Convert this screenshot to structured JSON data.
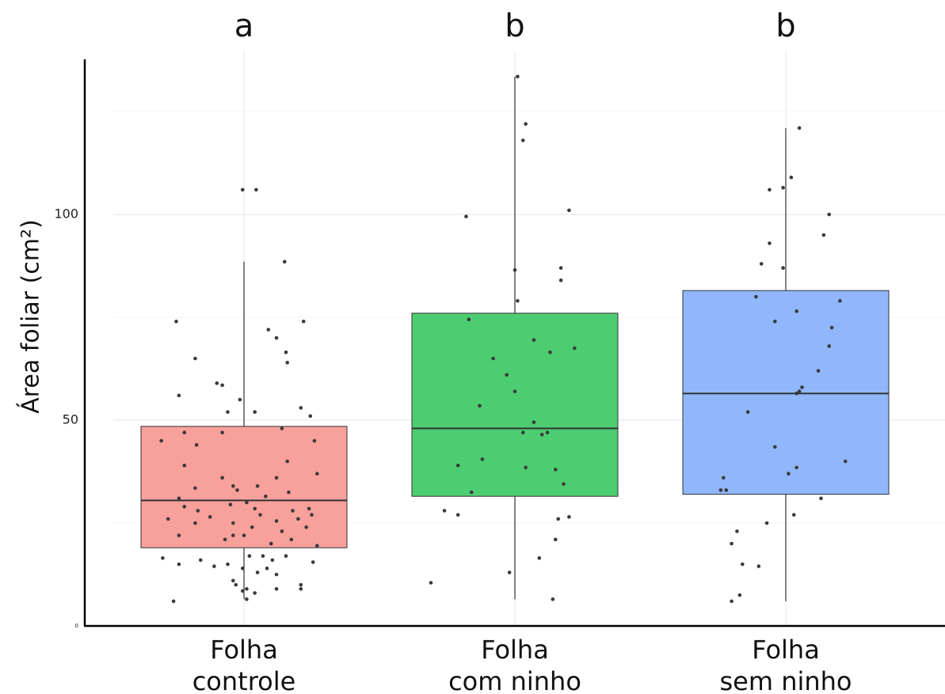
{
  "chart_data": {
    "type": "box",
    "ylabel": "Área foliar (cm²)",
    "ylim": [
      0,
      137
    ],
    "yticks": [
      {
        "value": 0,
        "label": "0"
      },
      {
        "value": 50,
        "label": "50"
      },
      {
        "value": 100,
        "label": "100"
      }
    ],
    "grid": true,
    "categories": [
      {
        "label_lines": [
          "Folha",
          "controle"
        ],
        "group_letter": "a",
        "color": "#f8a09c",
        "min": 6.5,
        "q1": 19,
        "median": 30.5,
        "q3": 48.5,
        "max": 88.5,
        "points": [
          [
            0.995,
            106
          ],
          [
            1.045,
            106
          ],
          [
            0.75,
            74
          ],
          [
            0.82,
            65
          ],
          [
            0.76,
            56
          ],
          [
            0.9,
            59
          ],
          [
            0.92,
            58.5
          ],
          [
            0.985,
            55
          ],
          [
            0.94,
            52
          ],
          [
            1.04,
            52
          ],
          [
            1.15,
            88.5
          ],
          [
            1.09,
            72
          ],
          [
            1.12,
            70
          ],
          [
            1.155,
            66.5
          ],
          [
            1.16,
            64
          ],
          [
            1.22,
            74
          ],
          [
            1.21,
            53
          ],
          [
            1.245,
            51
          ],
          [
            1.14,
            48
          ],
          [
            0.695,
            45
          ],
          [
            0.78,
            47
          ],
          [
            0.825,
            44
          ],
          [
            0.92,
            47
          ],
          [
            1.26,
            45
          ],
          [
            1.16,
            40
          ],
          [
            1.27,
            37
          ],
          [
            0.78,
            39
          ],
          [
            0.82,
            33.5
          ],
          [
            0.92,
            36
          ],
          [
            0.96,
            34
          ],
          [
            0.975,
            33
          ],
          [
            1.05,
            34
          ],
          [
            1.08,
            31.5
          ],
          [
            1.12,
            36
          ],
          [
            1.165,
            32.5
          ],
          [
            0.76,
            31
          ],
          [
            0.78,
            29
          ],
          [
            0.83,
            28
          ],
          [
            0.875,
            26.5
          ],
          [
            0.95,
            29.5
          ],
          [
            1.01,
            30
          ],
          [
            1.04,
            28.5
          ],
          [
            1.06,
            27
          ],
          [
            1.12,
            25.5
          ],
          [
            1.18,
            28
          ],
          [
            1.2,
            26
          ],
          [
            1.24,
            28.5
          ],
          [
            1.25,
            27
          ],
          [
            0.72,
            26
          ],
          [
            0.76,
            22
          ],
          [
            0.82,
            25
          ],
          [
            0.96,
            25
          ],
          [
            1.0,
            22
          ],
          [
            1.03,
            24
          ],
          [
            1.1,
            20
          ],
          [
            1.14,
            23
          ],
          [
            1.175,
            21
          ],
          [
            1.23,
            24
          ],
          [
            0.93,
            21
          ],
          [
            0.96,
            22
          ],
          [
            1.27,
            19.5
          ],
          [
            1.02,
            17
          ],
          [
            1.07,
            17
          ],
          [
            1.105,
            16
          ],
          [
            1.155,
            17
          ],
          [
            1.255,
            15.5
          ],
          [
            0.7,
            16.5
          ],
          [
            0.76,
            15
          ],
          [
            0.84,
            16
          ],
          [
            0.89,
            14.5
          ],
          [
            0.94,
            15
          ],
          [
            0.995,
            14
          ],
          [
            1.05,
            13
          ],
          [
            1.085,
            14
          ],
          [
            1.12,
            12.5
          ],
          [
            0.96,
            11
          ],
          [
            0.97,
            10
          ],
          [
            1.01,
            9
          ],
          [
            0.995,
            8.5
          ],
          [
            1.04,
            8
          ],
          [
            1.12,
            9
          ],
          [
            1.21,
            10
          ],
          [
            1.21,
            9
          ],
          [
            0.74,
            6
          ],
          [
            1.01,
            6.5
          ]
        ]
      },
      {
        "label_lines": [
          "Folha",
          "com ninho"
        ],
        "group_letter": "b",
        "color": "#4ccd71",
        "min": 6.5,
        "q1": 31.5,
        "median": 48,
        "q3": 76,
        "max": 133.5,
        "points": [
          [
            2.01,
            133.5
          ],
          [
            2.04,
            122
          ],
          [
            2.03,
            118
          ],
          [
            2.2,
            101
          ],
          [
            1.82,
            99.5
          ],
          [
            2.17,
            87
          ],
          [
            2.17,
            84
          ],
          [
            2.0,
            86.5
          ],
          [
            2.01,
            79
          ],
          [
            1.83,
            74.5
          ],
          [
            2.07,
            69.5
          ],
          [
            2.13,
            66.5
          ],
          [
            2.22,
            67.5
          ],
          [
            1.92,
            65
          ],
          [
            1.97,
            61
          ],
          [
            2.0,
            57
          ],
          [
            1.87,
            53.5
          ],
          [
            2.07,
            49.5
          ],
          [
            2.03,
            47
          ],
          [
            2.1,
            46.5
          ],
          [
            2.12,
            47
          ],
          [
            1.79,
            39
          ],
          [
            1.88,
            40.5
          ],
          [
            2.04,
            38.5
          ],
          [
            2.15,
            38
          ],
          [
            2.18,
            34.5
          ],
          [
            1.84,
            32.5
          ],
          [
            1.74,
            28
          ],
          [
            1.79,
            27
          ],
          [
            2.16,
            26
          ],
          [
            2.2,
            26.5
          ],
          [
            2.15,
            21
          ],
          [
            2.09,
            16.5
          ],
          [
            1.69,
            10.5
          ],
          [
            1.98,
            13
          ],
          [
            2.14,
            6.5
          ]
        ]
      },
      {
        "label_lines": [
          "Folha",
          "sem ninho"
        ],
        "group_letter": "b",
        "color": "#90b7fb",
        "min": 6,
        "q1": 32,
        "median": 56.5,
        "q3": 81.5,
        "max": 121,
        "points": [
          [
            3.05,
            121
          ],
          [
            3.02,
            109
          ],
          [
            2.94,
            106
          ],
          [
            2.99,
            106.5
          ],
          [
            3.16,
            100
          ],
          [
            3.14,
            95
          ],
          [
            2.94,
            93
          ],
          [
            2.91,
            88
          ],
          [
            2.99,
            87
          ],
          [
            2.89,
            80
          ],
          [
            2.96,
            74
          ],
          [
            3.04,
            76.5
          ],
          [
            3.2,
            79
          ],
          [
            3.17,
            72.5
          ],
          [
            3.16,
            68
          ],
          [
            3.12,
            62
          ],
          [
            3.06,
            58
          ],
          [
            3.04,
            56.5
          ],
          [
            3.05,
            57
          ],
          [
            2.86,
            52
          ],
          [
            2.96,
            43.5
          ],
          [
            3.04,
            38.5
          ],
          [
            3.01,
            37
          ],
          [
            3.22,
            40
          ],
          [
            2.77,
            36
          ],
          [
            2.76,
            33
          ],
          [
            2.78,
            33
          ],
          [
            3.13,
            31
          ],
          [
            2.82,
            23
          ],
          [
            2.8,
            20
          ],
          [
            2.84,
            15
          ],
          [
            2.9,
            14.5
          ],
          [
            2.93,
            25
          ],
          [
            3.03,
            27
          ],
          [
            2.8,
            6
          ],
          [
            2.83,
            7.5
          ]
        ]
      }
    ]
  }
}
